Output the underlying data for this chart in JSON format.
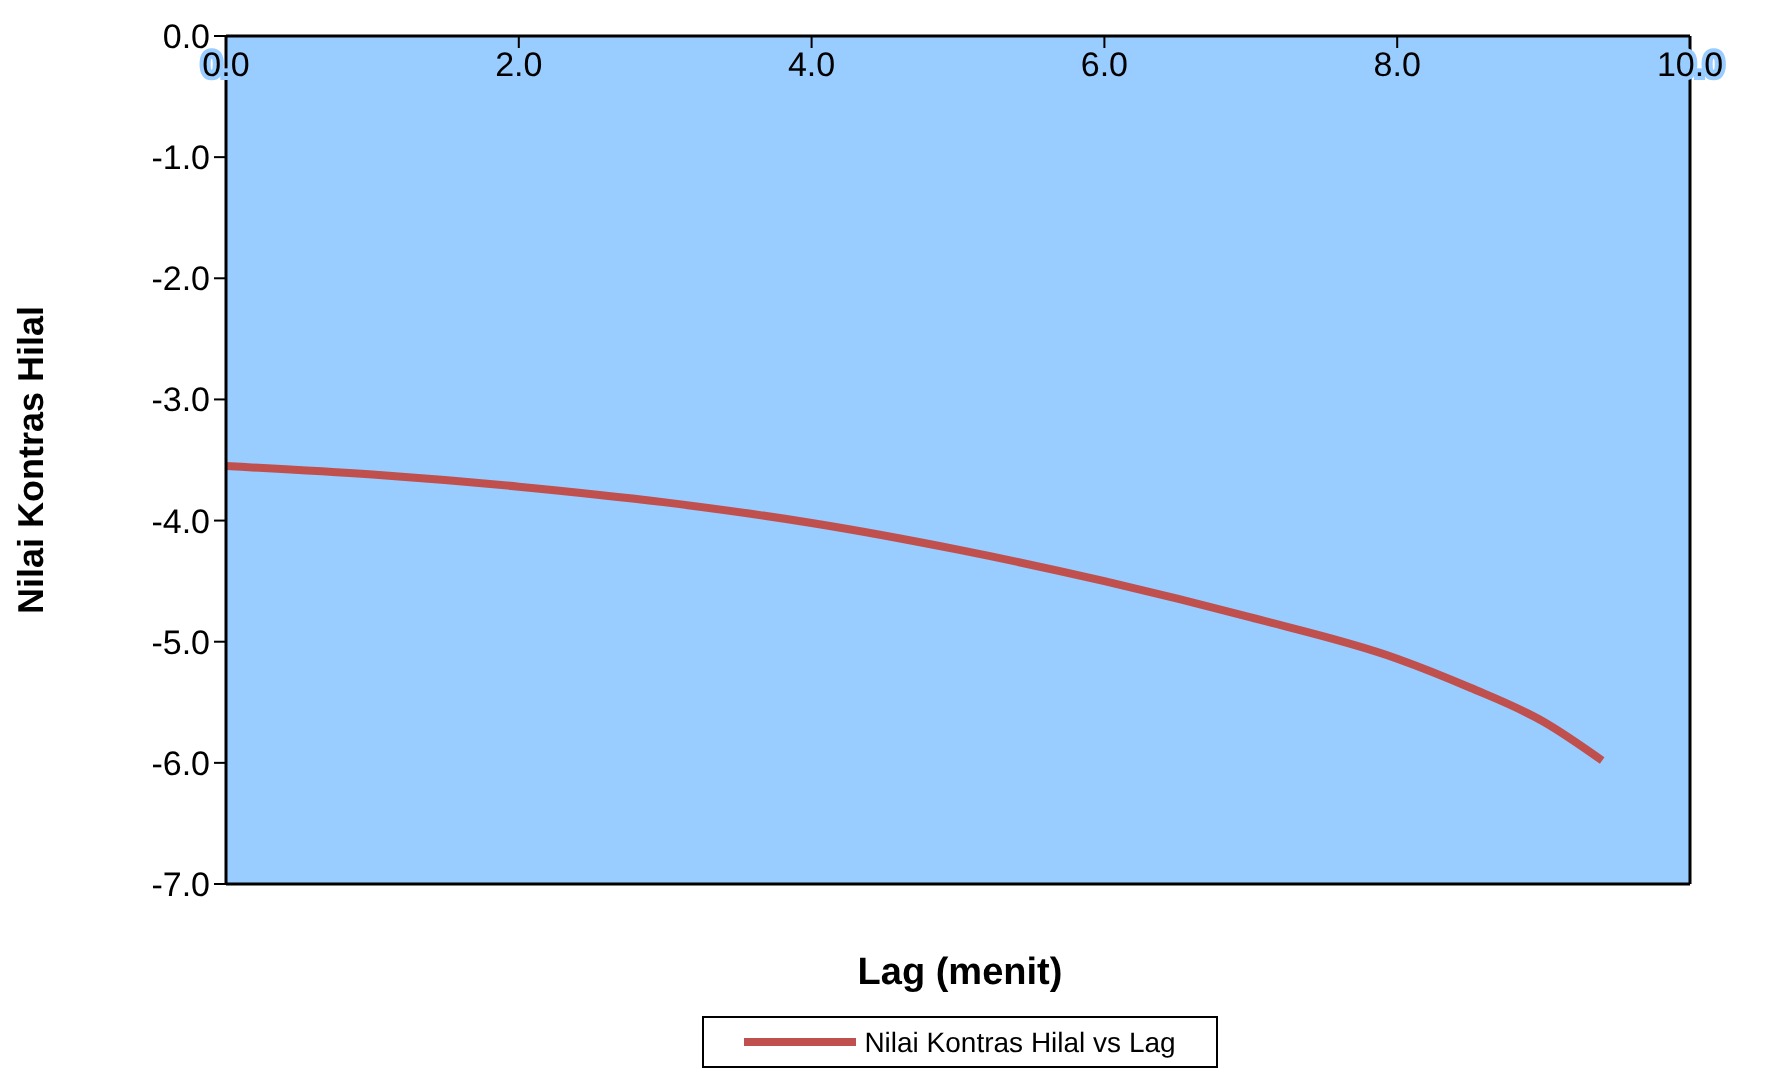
{
  "chart_data": {
    "type": "line",
    "xlabel": "Lag (menit)",
    "ylabel": "Nilai Kontras Hilal",
    "x": [
      0,
      1,
      2,
      3,
      4,
      5,
      6,
      7,
      8,
      8.5,
      9,
      9.4
    ],
    "series": [
      {
        "name": "Nilai Kontras Hilal vs Lag",
        "color": "#c0504d",
        "values": [
          -3.55,
          -3.62,
          -3.72,
          -3.85,
          -4.02,
          -4.24,
          -4.5,
          -4.8,
          -5.14,
          -5.38,
          -5.66,
          -5.98
        ]
      }
    ],
    "xlim": [
      0,
      10
    ],
    "xticks": [
      {
        "value": 0,
        "label": "0.0"
      },
      {
        "value": 2,
        "label": "2.0"
      },
      {
        "value": 4,
        "label": "4.0"
      },
      {
        "value": 6,
        "label": "6.0"
      },
      {
        "value": 8,
        "label": "8.0"
      },
      {
        "value": 10,
        "label": "10.0"
      }
    ],
    "ylim": [
      -7,
      0
    ],
    "yticks": [
      {
        "value": -7,
        "label": "-7.0"
      },
      {
        "value": -6,
        "label": "-6.0"
      },
      {
        "value": -5,
        "label": "-5.0"
      },
      {
        "value": -4,
        "label": "-4.0"
      },
      {
        "value": -3,
        "label": "-3.0"
      },
      {
        "value": -2,
        "label": "-2.0"
      },
      {
        "value": -1,
        "label": "-1.0"
      },
      {
        "value": 0,
        "label": "0.0"
      }
    ],
    "grid": false,
    "legend": "bottom",
    "marker": "none",
    "line_style": "solid"
  }
}
